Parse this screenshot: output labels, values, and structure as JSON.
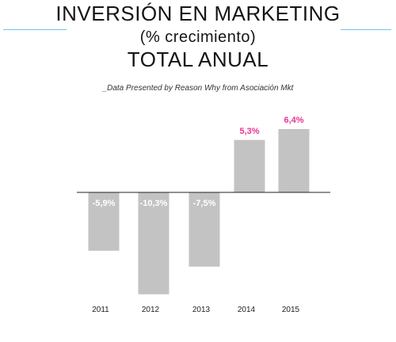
{
  "title_line1": "INVERSIÓN EN MARKETING",
  "title_line2": "(% crecimiento)",
  "title_line3": "TOTAL ANUAL",
  "source": "_Data Presented by Reason Why from Asociación Mkt",
  "colors": {
    "bar": "#c3c3c3",
    "positive_label": "#e8348f",
    "negative_label": "#ffffff",
    "title_rule": "#6ec6ee"
  },
  "chart_data": {
    "type": "bar",
    "title": "INVERSIÓN EN MARKETING (% crecimiento) TOTAL ANUAL",
    "categories": [
      "2011",
      "2012",
      "2013",
      "2014",
      "2015"
    ],
    "values": [
      -5.9,
      -10.3,
      -7.5,
      5.3,
      6.4
    ],
    "data_labels": [
      "-5,9%",
      "-10,3%",
      "-7,5%",
      "5,3%",
      "6,4%"
    ],
    "xlabel": "",
    "ylabel": "",
    "ylim": [
      -10.3,
      6.4
    ],
    "grid": false,
    "legend": "none"
  }
}
